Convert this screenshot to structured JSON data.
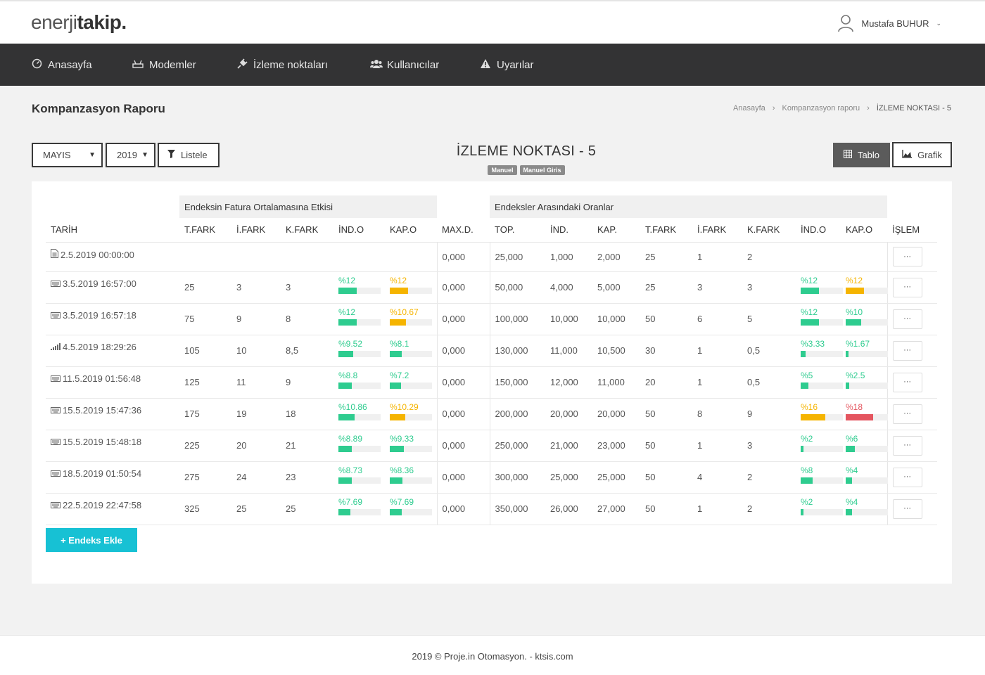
{
  "header": {
    "logo_light": "enerji",
    "logo_bold": "takip.",
    "user_name": "Mustafa BUHUR",
    "user_caret": "⌄"
  },
  "nav": {
    "items": [
      {
        "label": "Anasayfa",
        "icon": "dashboard-icon"
      },
      {
        "label": "Modemler",
        "icon": "modem-icon"
      },
      {
        "label": "İzleme noktaları",
        "icon": "plug-icon"
      },
      {
        "label": "Kullanıcılar",
        "icon": "users-icon"
      },
      {
        "label": "Uyarılar",
        "icon": "warning-icon"
      }
    ]
  },
  "page": {
    "title": "Kompanzasyon Raporu",
    "breadcrumb": [
      "Anasayfa",
      "Kompanzasyon raporu",
      "İZLEME NOKTASI - 5"
    ]
  },
  "filters": {
    "month": "MAYIS",
    "year": "2019",
    "list_button": "Listele"
  },
  "report": {
    "title": "İZLEME NOKTASI - 5",
    "tags": [
      "Manuel",
      "Manuel Giris"
    ],
    "tablo_button": "Tablo",
    "grafik_button": "Grafik"
  },
  "table": {
    "group_headers": {
      "left": "Endeksin Fatura Ortalamasına Etkisi",
      "right": "Endeksler Arasındaki Oranlar"
    },
    "columns": [
      "TARİH",
      "T.FARK",
      "İ.FARK",
      "K.FARK",
      "İND.O",
      "KAP.O",
      "MAX.D.",
      "TOP.",
      "İND.",
      "KAP.",
      "T.FARK",
      "İ.FARK",
      "K.FARK",
      "İND.O",
      "KAP.O",
      "İŞLEM"
    ],
    "rows": [
      {
        "date": "2.5.2019 00:00:00",
        "icon": "document-icon",
        "tfark": "",
        "ifark": "",
        "kfark": "",
        "indo": null,
        "kapo": null,
        "maxd": "0,000",
        "top": "25,000",
        "ind": "1,000",
        "kap": "2,000",
        "tfark2": "25",
        "ifark2": "1",
        "kfark2": "2",
        "indo2": null,
        "kapo2": null
      },
      {
        "date": "3.5.2019 16:57:00",
        "icon": "keyboard-icon",
        "tfark": "25",
        "ifark": "3",
        "kfark": "3",
        "indo": {
          "text": "%12",
          "value": 12,
          "color": "#2ecc8f"
        },
        "kapo": {
          "text": "%12",
          "value": 12,
          "color": "#f5b400"
        },
        "maxd": "0,000",
        "top": "50,000",
        "ind": "4,000",
        "kap": "5,000",
        "tfark2": "25",
        "ifark2": "3",
        "kfark2": "3",
        "indo2": {
          "text": "%12",
          "value": 12,
          "color": "#2ecc8f"
        },
        "kapo2": {
          "text": "%12",
          "value": 12,
          "color": "#f5b400"
        }
      },
      {
        "date": "3.5.2019 16:57:18",
        "icon": "keyboard-icon",
        "tfark": "75",
        "ifark": "9",
        "kfark": "8",
        "indo": {
          "text": "%12",
          "value": 12,
          "color": "#2ecc8f"
        },
        "kapo": {
          "text": "%10.67",
          "value": 10.67,
          "color": "#f5b400"
        },
        "maxd": "0,000",
        "top": "100,000",
        "ind": "10,000",
        "kap": "10,000",
        "tfark2": "50",
        "ifark2": "6",
        "kfark2": "5",
        "indo2": {
          "text": "%12",
          "value": 12,
          "color": "#2ecc8f"
        },
        "kapo2": {
          "text": "%10",
          "value": 10,
          "color": "#2ecc8f"
        }
      },
      {
        "date": "4.5.2019 18:29:26",
        "icon": "signal-icon",
        "tfark": "105",
        "ifark": "10",
        "kfark": "8,5",
        "indo": {
          "text": "%9.52",
          "value": 9.52,
          "color": "#2ecc8f"
        },
        "kapo": {
          "text": "%8.1",
          "value": 8.1,
          "color": "#2ecc8f"
        },
        "maxd": "0,000",
        "top": "130,000",
        "ind": "11,000",
        "kap": "10,500",
        "tfark2": "30",
        "ifark2": "1",
        "kfark2": "0,5",
        "indo2": {
          "text": "%3.33",
          "value": 3.33,
          "color": "#2ecc8f"
        },
        "kapo2": {
          "text": "%1.67",
          "value": 1.67,
          "color": "#2ecc8f"
        }
      },
      {
        "date": "11.5.2019 01:56:48",
        "icon": "keyboard-icon",
        "tfark": "125",
        "ifark": "11",
        "kfark": "9",
        "indo": {
          "text": "%8.8",
          "value": 8.8,
          "color": "#2ecc8f"
        },
        "kapo": {
          "text": "%7.2",
          "value": 7.2,
          "color": "#2ecc8f"
        },
        "maxd": "0,000",
        "top": "150,000",
        "ind": "12,000",
        "kap": "11,000",
        "tfark2": "20",
        "ifark2": "1",
        "kfark2": "0,5",
        "indo2": {
          "text": "%5",
          "value": 5,
          "color": "#2ecc8f"
        },
        "kapo2": {
          "text": "%2.5",
          "value": 2.5,
          "color": "#2ecc8f"
        }
      },
      {
        "date": "15.5.2019 15:47:36",
        "icon": "keyboard-icon",
        "tfark": "175",
        "ifark": "19",
        "kfark": "18",
        "indo": {
          "text": "%10.86",
          "value": 10.86,
          "color": "#2ecc8f"
        },
        "kapo": {
          "text": "%10.29",
          "value": 10.29,
          "color": "#f5b400"
        },
        "maxd": "0,000",
        "top": "200,000",
        "ind": "20,000",
        "kap": "20,000",
        "tfark2": "50",
        "ifark2": "8",
        "kfark2": "9",
        "indo2": {
          "text": "%16",
          "value": 16,
          "color": "#f5b400"
        },
        "kapo2": {
          "text": "%18",
          "value": 18,
          "color": "#e4555f"
        }
      },
      {
        "date": "15.5.2019 15:48:18",
        "icon": "keyboard-icon",
        "tfark": "225",
        "ifark": "20",
        "kfark": "21",
        "indo": {
          "text": "%8.89",
          "value": 8.89,
          "color": "#2ecc8f"
        },
        "kapo": {
          "text": "%9.33",
          "value": 9.33,
          "color": "#2ecc8f"
        },
        "maxd": "0,000",
        "top": "250,000",
        "ind": "21,000",
        "kap": "23,000",
        "tfark2": "50",
        "ifark2": "1",
        "kfark2": "3",
        "indo2": {
          "text": "%2",
          "value": 2,
          "color": "#2ecc8f"
        },
        "kapo2": {
          "text": "%6",
          "value": 6,
          "color": "#2ecc8f"
        }
      },
      {
        "date": "18.5.2019 01:50:54",
        "icon": "keyboard-icon",
        "tfark": "275",
        "ifark": "24",
        "kfark": "23",
        "indo": {
          "text": "%8.73",
          "value": 8.73,
          "color": "#2ecc8f"
        },
        "kapo": {
          "text": "%8.36",
          "value": 8.36,
          "color": "#2ecc8f"
        },
        "maxd": "0,000",
        "top": "300,000",
        "ind": "25,000",
        "kap": "25,000",
        "tfark2": "50",
        "ifark2": "4",
        "kfark2": "2",
        "indo2": {
          "text": "%8",
          "value": 8,
          "color": "#2ecc8f"
        },
        "kapo2": {
          "text": "%4",
          "value": 4,
          "color": "#2ecc8f"
        }
      },
      {
        "date": "22.5.2019 22:47:58",
        "icon": "keyboard-icon",
        "tfark": "325",
        "ifark": "25",
        "kfark": "25",
        "indo": {
          "text": "%7.69",
          "value": 7.69,
          "color": "#2ecc8f"
        },
        "kapo": {
          "text": "%7.69",
          "value": 7.69,
          "color": "#2ecc8f"
        },
        "maxd": "0,000",
        "top": "350,000",
        "ind": "26,000",
        "kap": "27,000",
        "tfark2": "50",
        "ifark2": "1",
        "kfark2": "2",
        "indo2": {
          "text": "%2",
          "value": 2,
          "color": "#2ecc8f"
        },
        "kapo2": {
          "text": "%4",
          "value": 4,
          "color": "#2ecc8f"
        }
      }
    ],
    "action_label": "···"
  },
  "add_button": "+ Endeks Ekle",
  "footer": "2019 © Proje.in Otomasyon. - ktsis.com"
}
